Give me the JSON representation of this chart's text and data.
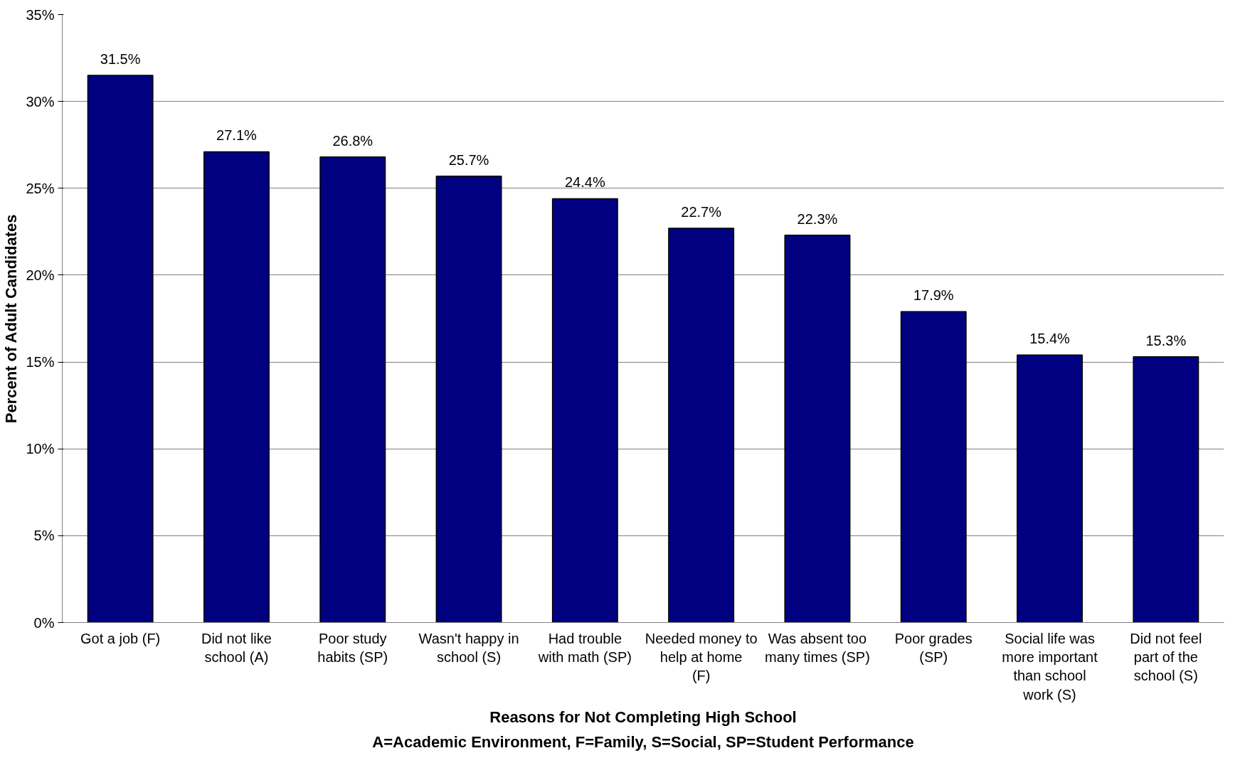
{
  "chart_data": {
    "type": "bar",
    "xlabel": "Reasons for Not Completing High School",
    "ylabel": "Percent of Adult Candidates",
    "annotations": [
      "A=Academic Environment, F=Family, S=Social, SP=Student Performance"
    ],
    "categories": [
      "Got a job (F)",
      "Did not like school (A)",
      "Poor study habits (SP)",
      "Wasn't happy in school (S)",
      "Had trouble with math (SP)",
      "Needed money to help at home (F)",
      "Was absent too many times (SP)",
      "Poor grades (SP)",
      "Social life was more important than school work (S)",
      "Did not feel part of the school (S)"
    ],
    "values": [
      31.5,
      27.1,
      26.8,
      25.7,
      24.4,
      22.7,
      22.3,
      17.9,
      15.4,
      15.3
    ],
    "value_labels": [
      "31.5%",
      "27.1%",
      "26.8%",
      "25.7%",
      "24.4%",
      "22.7%",
      "22.3%",
      "17.9%",
      "15.4%",
      "15.3%"
    ],
    "color": "#000080",
    "ylim": [
      0,
      35
    ],
    "yticks": [
      {
        "value": 0,
        "label": "0%"
      },
      {
        "value": 5,
        "label": "5%"
      },
      {
        "value": 10,
        "label": "10%"
      },
      {
        "value": 15,
        "label": "15%"
      },
      {
        "value": 20,
        "label": "20%"
      },
      {
        "value": 25,
        "label": "25%"
      },
      {
        "value": 30,
        "label": "30%"
      },
      {
        "value": 35,
        "label": "35%"
      }
    ],
    "grid": "y"
  }
}
